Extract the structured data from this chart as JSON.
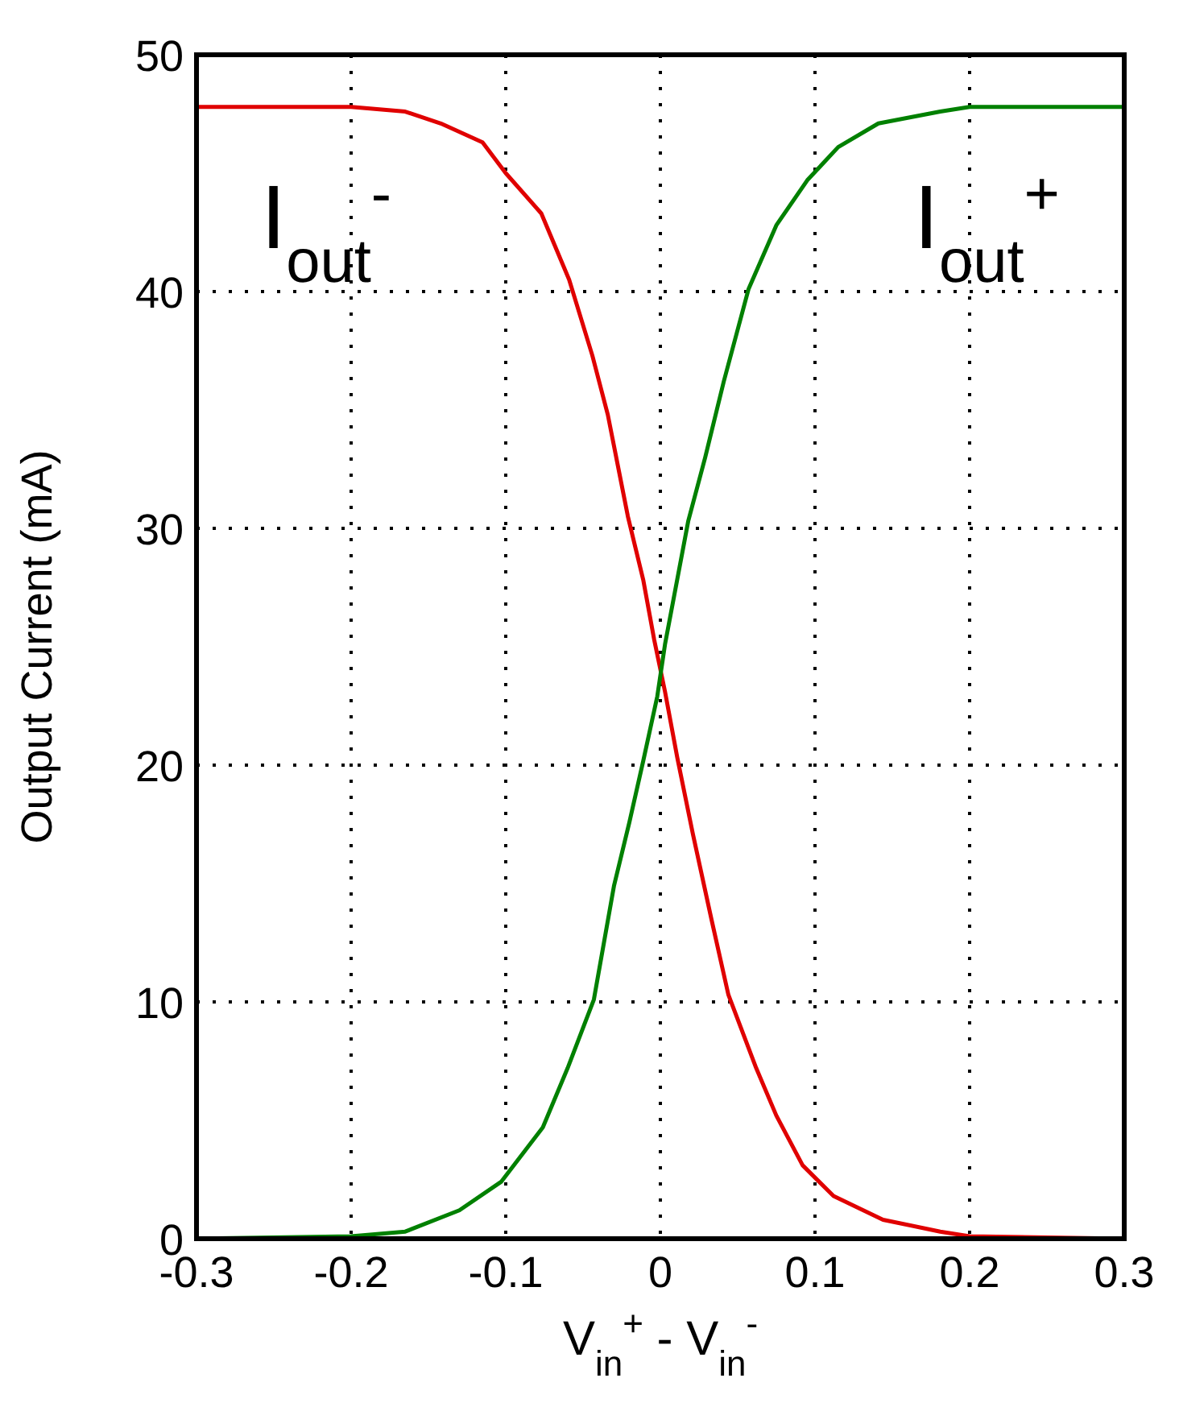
{
  "chart_data": {
    "type": "line",
    "xlabel": "V$_{in}$$^{+}$ - V$_{in}$$^{-}$",
    "ylabel": "Output Current (mA)",
    "xlim": [
      -0.3,
      0.3
    ],
    "xticks": [
      -0.3,
      -0.2,
      -0.1,
      0,
      0.1,
      0.2,
      0.3
    ],
    "ylim": [
      0,
      50
    ],
    "yticks": [
      0,
      10,
      20,
      30,
      40,
      50
    ],
    "grid": true,
    "line_style": "solid",
    "marker": "none",
    "series": [
      {
        "name": "I$_{out}$$^{-}$",
        "color": "#e00000",
        "x": [
          -0.3,
          -0.2,
          -0.165,
          -0.142,
          -0.115,
          -0.1,
          -0.077,
          -0.059,
          -0.044,
          -0.034,
          -0.021,
          -0.011,
          -0.004,
          0.003,
          0.011,
          0.021,
          0.033,
          0.044,
          0.062,
          0.075,
          0.092,
          0.112,
          0.144,
          0.181,
          0.2,
          0.3
        ],
        "values": [
          47.8,
          47.8,
          47.6,
          47.1,
          46.3,
          45,
          43.3,
          40.5,
          37.3,
          34.8,
          30.5,
          27.8,
          25.3,
          23.1,
          20.3,
          17.1,
          13.5,
          10.3,
          7.2,
          5.2,
          3.1,
          1.8,
          0.8,
          0.3,
          0.1,
          0
        ]
      },
      {
        "name": "I$_{out}$$^{+}$",
        "color": "#008000",
        "x": [
          -0.3,
          -0.2,
          -0.165,
          -0.13,
          -0.103,
          -0.076,
          -0.06,
          -0.043,
          -0.03,
          -0.02,
          -0.011,
          -0.002,
          0.003,
          0.018,
          0.029,
          0.041,
          0.057,
          0.075,
          0.095,
          0.115,
          0.141,
          0.181,
          0.2,
          0.3
        ],
        "values": [
          0,
          0.1,
          0.3,
          1.2,
          2.4,
          4.7,
          7.2,
          10.1,
          14.9,
          17.6,
          20.2,
          22.9,
          25.1,
          30.3,
          33,
          36.2,
          40.1,
          42.8,
          44.7,
          46.1,
          47.1,
          47.6,
          47.8,
          47.8
        ]
      }
    ]
  }
}
